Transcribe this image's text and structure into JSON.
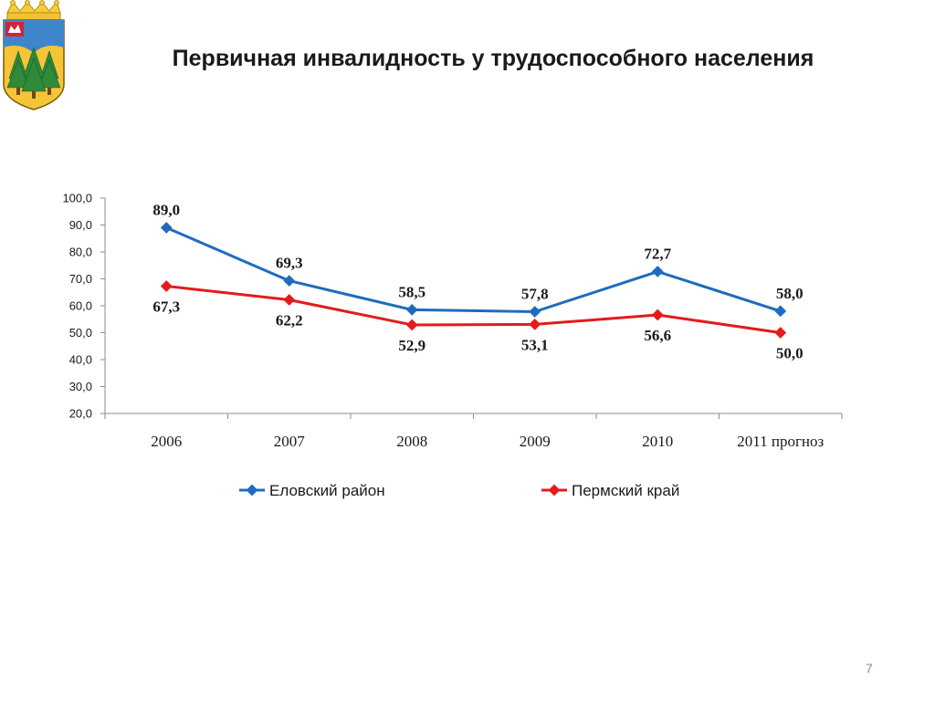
{
  "slide": {
    "title": "Первичная инвалидность у трудоспособного населения",
    "page_number": "7"
  },
  "colors": {
    "series_1": "#1f6bbf",
    "series_2": "#e41b1b",
    "axis": "#8c8c8c",
    "text": "#1a1a1a"
  },
  "chart_data": {
    "type": "line",
    "title": "",
    "xlabel": "",
    "ylabel": "",
    "categories": [
      "2006",
      "2007",
      "2008",
      "2009",
      "2010",
      "2011 прогноз"
    ],
    "ylim": [
      20,
      100
    ],
    "ytick_step": 10,
    "y_tick_labels": [
      "20,0",
      "30,0",
      "40,0",
      "50,0",
      "60,0",
      "70,0",
      "80,0",
      "90,0",
      "100,0"
    ],
    "grid": false,
    "legend_position": "bottom",
    "series": [
      {
        "name": "Еловский район",
        "values": [
          89.0,
          69.3,
          58.5,
          57.8,
          72.7,
          58.0
        ],
        "labels": [
          "89,0",
          "69,3",
          "58,5",
          "57,8",
          "72,7",
          "58,0"
        ]
      },
      {
        "name": "Пермский край",
        "values": [
          67.3,
          62.2,
          52.9,
          53.1,
          56.6,
          50.0
        ],
        "labels": [
          "67,3",
          "62,2",
          "52,9",
          "53,1",
          "56,6",
          "50,0"
        ]
      }
    ]
  }
}
